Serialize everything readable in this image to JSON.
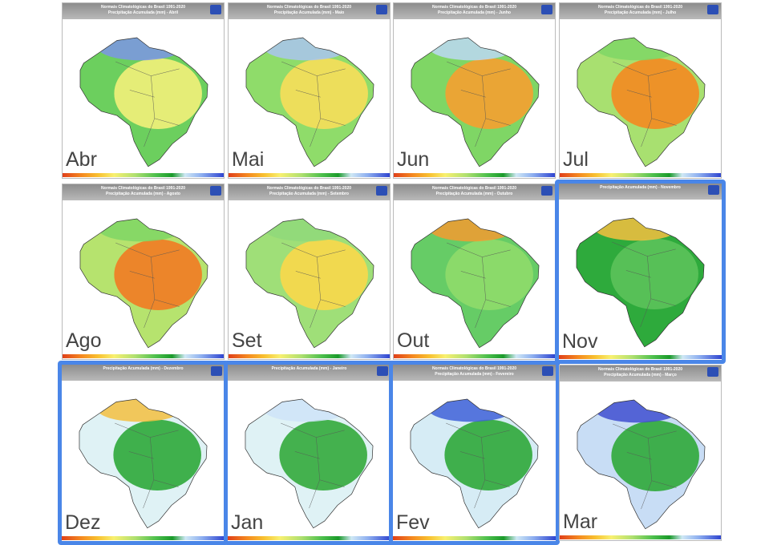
{
  "panels": [
    {
      "title": "Normais Climatológicas do Brasil 1991-2020",
      "subtitle": "Precipitação Acumulada (mm) - Abril",
      "month": "Abr",
      "highlighted": false,
      "colors": [
        "#6ccf5e",
        "#f3ef7a",
        "#7d95e6"
      ]
    },
    {
      "title": "Normais Climatológicas do Brasil 1991-2020",
      "subtitle": "Precipitação Acumulada (mm) - Maio",
      "month": "Mai",
      "highlighted": false,
      "colors": [
        "#8fdc6a",
        "#f7de5a",
        "#aac4f0"
      ]
    },
    {
      "title": "Normais Climatológicas do Brasil 1991-2020",
      "subtitle": "Precipitação Acumulada (mm) - Junho",
      "month": "Jun",
      "highlighted": false,
      "colors": [
        "#7fd665",
        "#f6a030",
        "#bcd8f5"
      ]
    },
    {
      "title": "Normais Climatológicas do Brasil 1991-2020",
      "subtitle": "Precipitação Acumulada (mm) - Julho",
      "month": "Jul",
      "highlighted": false,
      "colors": [
        "#a8e070",
        "#f48a20",
        "#7fd665"
      ]
    },
    {
      "title": "Normais Climatológicas do Brasil 1991-2020",
      "subtitle": "Precipitação Acumulada (mm) - Agosto",
      "month": "Ago",
      "highlighted": false,
      "colors": [
        "#b6e36e",
        "#f27a22",
        "#7fd665"
      ]
    },
    {
      "title": "Normais Climatológicas do Brasil 1991-2020",
      "subtitle": "Precipitação Acumulada (mm) - Setembro",
      "month": "Set",
      "highlighted": false,
      "colors": [
        "#9fdf78",
        "#f9d84a",
        "#8fd97a"
      ]
    },
    {
      "title": "Normais Climatológicas do Brasil 1991-2020",
      "subtitle": "Precipitação Acumulada (mm) - Outubro",
      "month": "Out",
      "highlighted": false,
      "colors": [
        "#66cc66",
        "#8fdc6a",
        "#f59a30"
      ]
    },
    {
      "subtitle": "Precipitação Acumulada (mm) - Novembro",
      "month": "Nov",
      "highlighted": true,
      "colors": [
        "#2eaa3c",
        "#5cc25a",
        "#f5c040"
      ]
    },
    {
      "subtitle": "Precipitação Acumulada (mm) - Dezembro",
      "month": "Dez",
      "highlighted": true,
      "colors": [
        "#dff2f5",
        "#2ea83a",
        "#f5c040"
      ]
    },
    {
      "subtitle": "Precipitação Acumulada (mm) - Janeiro",
      "month": "Jan",
      "highlighted": true,
      "colors": [
        "#dff2f5",
        "#33aa3c",
        "#cfe4f8"
      ]
    },
    {
      "title": "Normais Climatológicas do Brasil 1991-2020",
      "subtitle": "Precipitação Acumulada (mm) - Fevereiro",
      "month": "Fev",
      "highlighted": true,
      "colors": [
        "#d6ecf5",
        "#2fa83a",
        "#3f62d8"
      ]
    },
    {
      "title": "Normais Climatológicas do Brasil 1991-2020",
      "subtitle": "Precipitação Acumulada (mm) - Março",
      "month": "Mar",
      "highlighted": false,
      "colors": [
        "#c8ddf5",
        "#2fa83a",
        "#3f4fd0"
      ]
    }
  ]
}
